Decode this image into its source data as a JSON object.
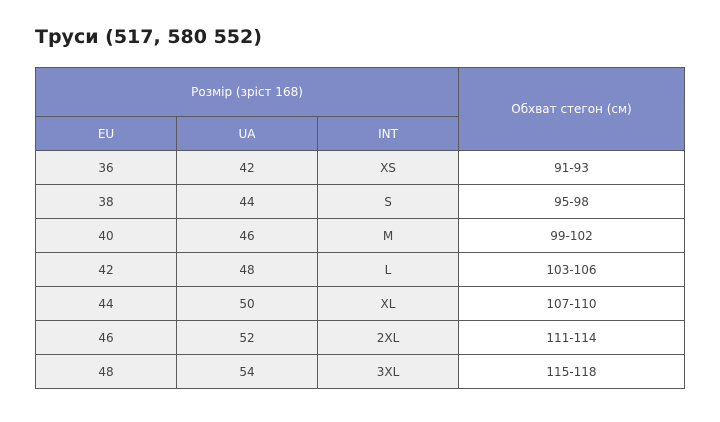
{
  "title": "Труси (517, 580 552)",
  "table": {
    "header": {
      "group": "Розмір (зріст 168)",
      "columns": [
        "EU",
        "UA",
        "INT"
      ],
      "last": "Обхват стегон (см)"
    },
    "rows": [
      [
        "36",
        "42",
        "XS",
        "91-93"
      ],
      [
        "38",
        "44",
        "S",
        "95-98"
      ],
      [
        "40",
        "46",
        "M",
        "99-102"
      ],
      [
        "42",
        "48",
        "L",
        "103-106"
      ],
      [
        "44",
        "50",
        "XL",
        "107-110"
      ],
      [
        "46",
        "52",
        "2XL",
        "111-114"
      ],
      [
        "48",
        "54",
        "3XL",
        "115-118"
      ]
    ]
  }
}
